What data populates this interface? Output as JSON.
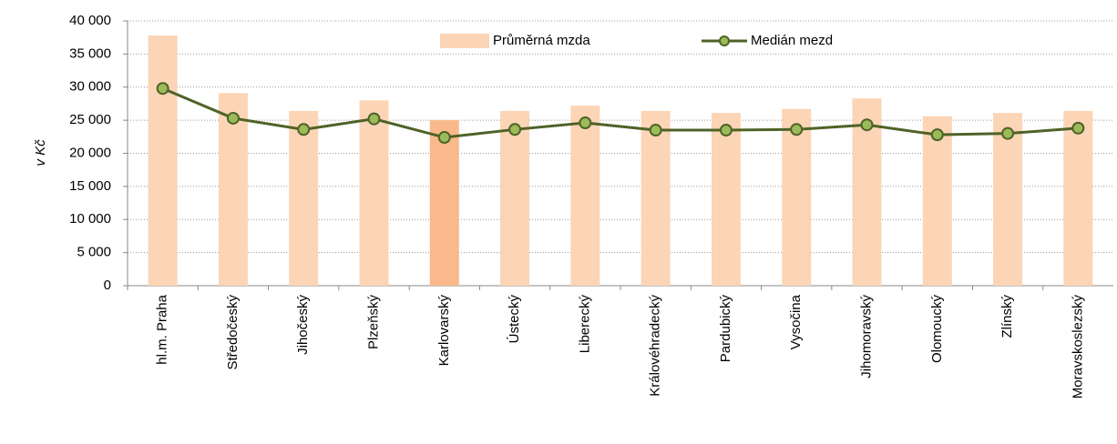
{
  "chart_data": {
    "type": "bar_line",
    "y_label": "v Kč",
    "categories": [
      "hl.m. Praha",
      "Středočeský",
      "Jihočeský",
      "Plzeňský",
      "Karlovarský",
      "Ústecký",
      "Liberecký",
      "Královéhradecký",
      "Pardubický",
      "Vysočina",
      "Jihomoravský",
      "Olomoucký",
      "Zlínský",
      "Moravskoslezský"
    ],
    "series": [
      {
        "name": "Průměrná mzda",
        "type": "bar",
        "color": "#fbd5b5",
        "colors": [
          "#fbd5b5",
          "#fbd5b5",
          "#fbd5b5",
          "#fbd5b5",
          "#f9b98a",
          "#fbd5b5",
          "#fbd5b5",
          "#fbd5b5",
          "#fbd5b5",
          "#fbd5b5",
          "#fbd5b5",
          "#fbd5b5",
          "#fbd5b5",
          "#fbd5b5"
        ],
        "values": [
          37800,
          29100,
          26400,
          28000,
          25000,
          26400,
          27200,
          26400,
          26100,
          26700,
          28300,
          25600,
          26100,
          26400
        ]
      },
      {
        "name": "Medián mezd",
        "type": "line",
        "color": "#4f6228",
        "marker_color": "#9bbb59",
        "values": [
          29800,
          25300,
          23600,
          25200,
          22400,
          23600,
          24600,
          23500,
          23500,
          23600,
          24300,
          22800,
          23000,
          23800
        ]
      }
    ],
    "ylim": [
      0,
      40000
    ],
    "yticks": [
      0,
      {
        "value": 5000,
        "label": "5 000"
      },
      {
        "value": 10000,
        "label": "10 000"
      },
      {
        "value": 15000,
        "label": "15 000"
      },
      {
        "value": 20000,
        "label": "20 000"
      },
      {
        "value": 25000,
        "label": "25 000"
      },
      {
        "value": 30000,
        "label": "30 000"
      },
      {
        "value": 35000,
        "label": "35 000"
      },
      {
        "value": 40000,
        "label": "40 000"
      }
    ],
    "grid": true,
    "legend": "top"
  }
}
